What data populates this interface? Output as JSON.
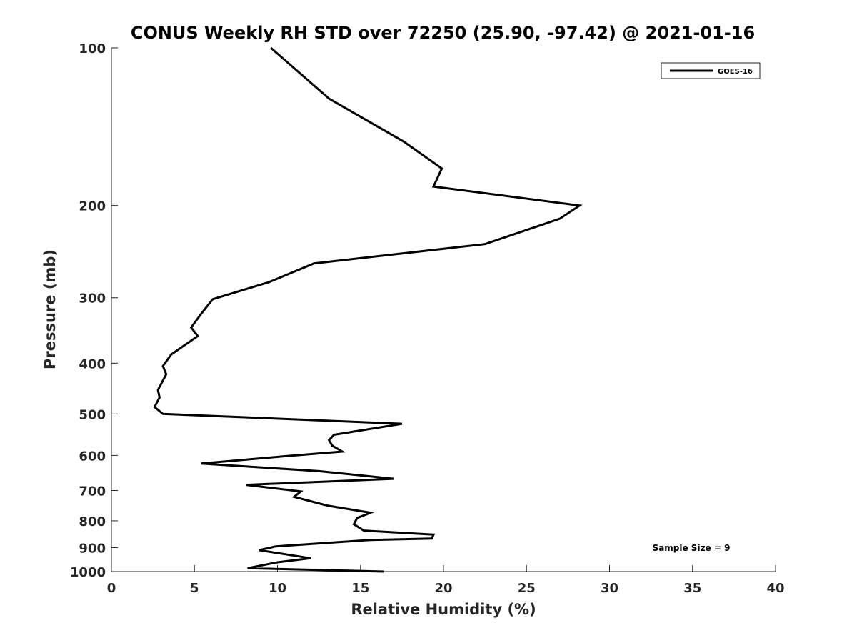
{
  "chart_data": {
    "type": "line",
    "title": "CONUS Weekly RH STD over 72250 (25.90, -97.42) @ 2021-01-16",
    "xlabel": "Relative Humidity (%)",
    "ylabel": "Pressure (mb)",
    "xlim": [
      0,
      40
    ],
    "ylim": [
      100,
      1000
    ],
    "yscale": "log",
    "yreversed": true,
    "xticks": [
      0,
      5,
      10,
      15,
      20,
      25,
      30,
      35,
      40
    ],
    "xtick_labels": [
      "0",
      "5",
      "10",
      "15",
      "20",
      "25",
      "30",
      "35",
      "40"
    ],
    "yticks": [
      100,
      200,
      300,
      400,
      500,
      600,
      700,
      800,
      900,
      1000
    ],
    "ytick_labels": [
      "100",
      "200",
      "300",
      "400",
      "500",
      "600",
      "700",
      "800",
      "900",
      "1000"
    ],
    "grid": false,
    "legend": {
      "position": "top-right",
      "entries": [
        "GOES-16"
      ]
    },
    "annotation": "Sample Size = 9",
    "series": [
      {
        "name": "GOES-16",
        "color": "#000000",
        "x": [
          16.4,
          8.2,
          10.0,
          12.0,
          8.9,
          9.9,
          15.6,
          19.3,
          19.4,
          15.2,
          14.6,
          14.8,
          15.6,
          13.0,
          11.0,
          11.4,
          8.1,
          17.0,
          12.5,
          5.4,
          10.5,
          13.9,
          13.3,
          13.1,
          13.4,
          17.5,
          3.1,
          2.6,
          2.9,
          2.8,
          3.3,
          3.1,
          3.6,
          5.2,
          4.8,
          5.4,
          6.1,
          9.5,
          12.2,
          22.5,
          27.0,
          28.2,
          19.4,
          19.9,
          17.6,
          13.1,
          9.6
        ],
        "y": [
          1000,
          985,
          960,
          943,
          910,
          895,
          870,
          865,
          850,
          835,
          812,
          790,
          772,
          748,
          720,
          703,
          683,
          665,
          643,
          622,
          602,
          590,
          575,
          561,
          548,
          522,
          500,
          485,
          465,
          450,
          420,
          405,
          385,
          355,
          342,
          322,
          302,
          280,
          258,
          237,
          212,
          200,
          184,
          170,
          151,
          125,
          100
        ]
      }
    ]
  }
}
